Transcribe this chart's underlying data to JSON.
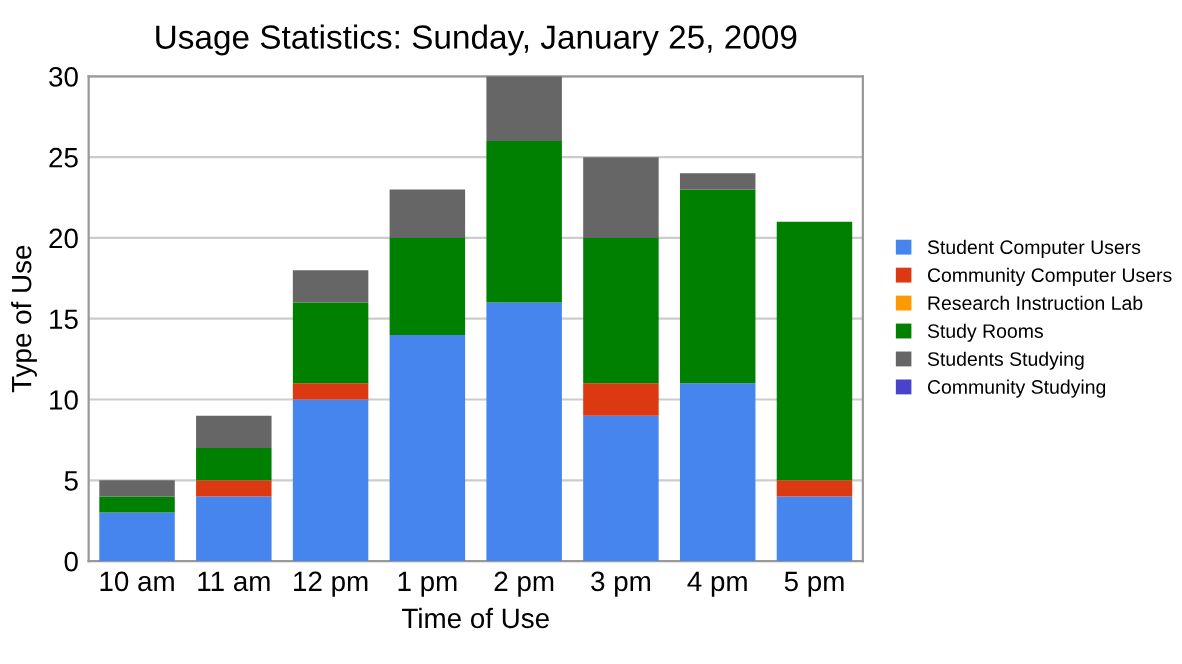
{
  "chart_data": {
    "type": "bar",
    "title": "Usage Statistics: Sunday, January 25, 2009",
    "xlabel": "Time of Use",
    "ylabel": "Type of Use",
    "categories": [
      "10 am",
      "11 am",
      "12 pm",
      "1 pm",
      "2 pm",
      "3 pm",
      "4 pm",
      "5 pm"
    ],
    "stacked": true,
    "series": [
      {
        "name": "Student Computer Users",
        "color": "#4684ee",
        "values": [
          3,
          4,
          10,
          14,
          16,
          9,
          11,
          4
        ]
      },
      {
        "name": "Community Computer Users",
        "color": "#dc3912",
        "values": [
          0,
          1,
          1,
          0,
          0,
          2,
          0,
          1
        ]
      },
      {
        "name": "Research Instruction Lab",
        "color": "#ff9900",
        "values": [
          0,
          0,
          0,
          0,
          0,
          0,
          0,
          0
        ]
      },
      {
        "name": "Study Rooms",
        "color": "#008000",
        "values": [
          1,
          2,
          5,
          6,
          10,
          9,
          12,
          16
        ]
      },
      {
        "name": "Students Studying",
        "color": "#666666",
        "values": [
          1,
          2,
          2,
          3,
          4,
          5,
          1,
          0
        ]
      },
      {
        "name": "Community Studying",
        "color": "#4942cc",
        "values": [
          0,
          0,
          0,
          0,
          0,
          0,
          0,
          0
        ]
      }
    ],
    "ylim": [
      0,
      30
    ],
    "yticks": [
      0,
      5,
      10,
      15,
      20,
      25,
      30
    ],
    "grid": "y",
    "legend": "right"
  }
}
